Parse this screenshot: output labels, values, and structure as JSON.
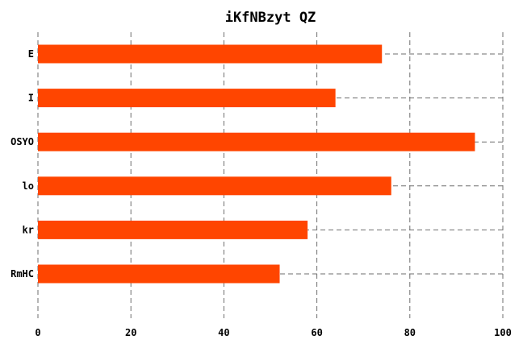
{
  "chart_data": {
    "type": "bar",
    "orientation": "horizontal",
    "title": "iKfNBzyt QZ",
    "xlabel": "",
    "ylabel": "",
    "categories": [
      "E",
      "I",
      "OSYO",
      "lo",
      "kr",
      "RmHC"
    ],
    "values": [
      74,
      64,
      94,
      76,
      58,
      52
    ],
    "xlim": [
      0,
      100
    ],
    "xticks": [
      0,
      20,
      40,
      60,
      80,
      100
    ],
    "grid": true,
    "bar_color": "#ff4500"
  }
}
